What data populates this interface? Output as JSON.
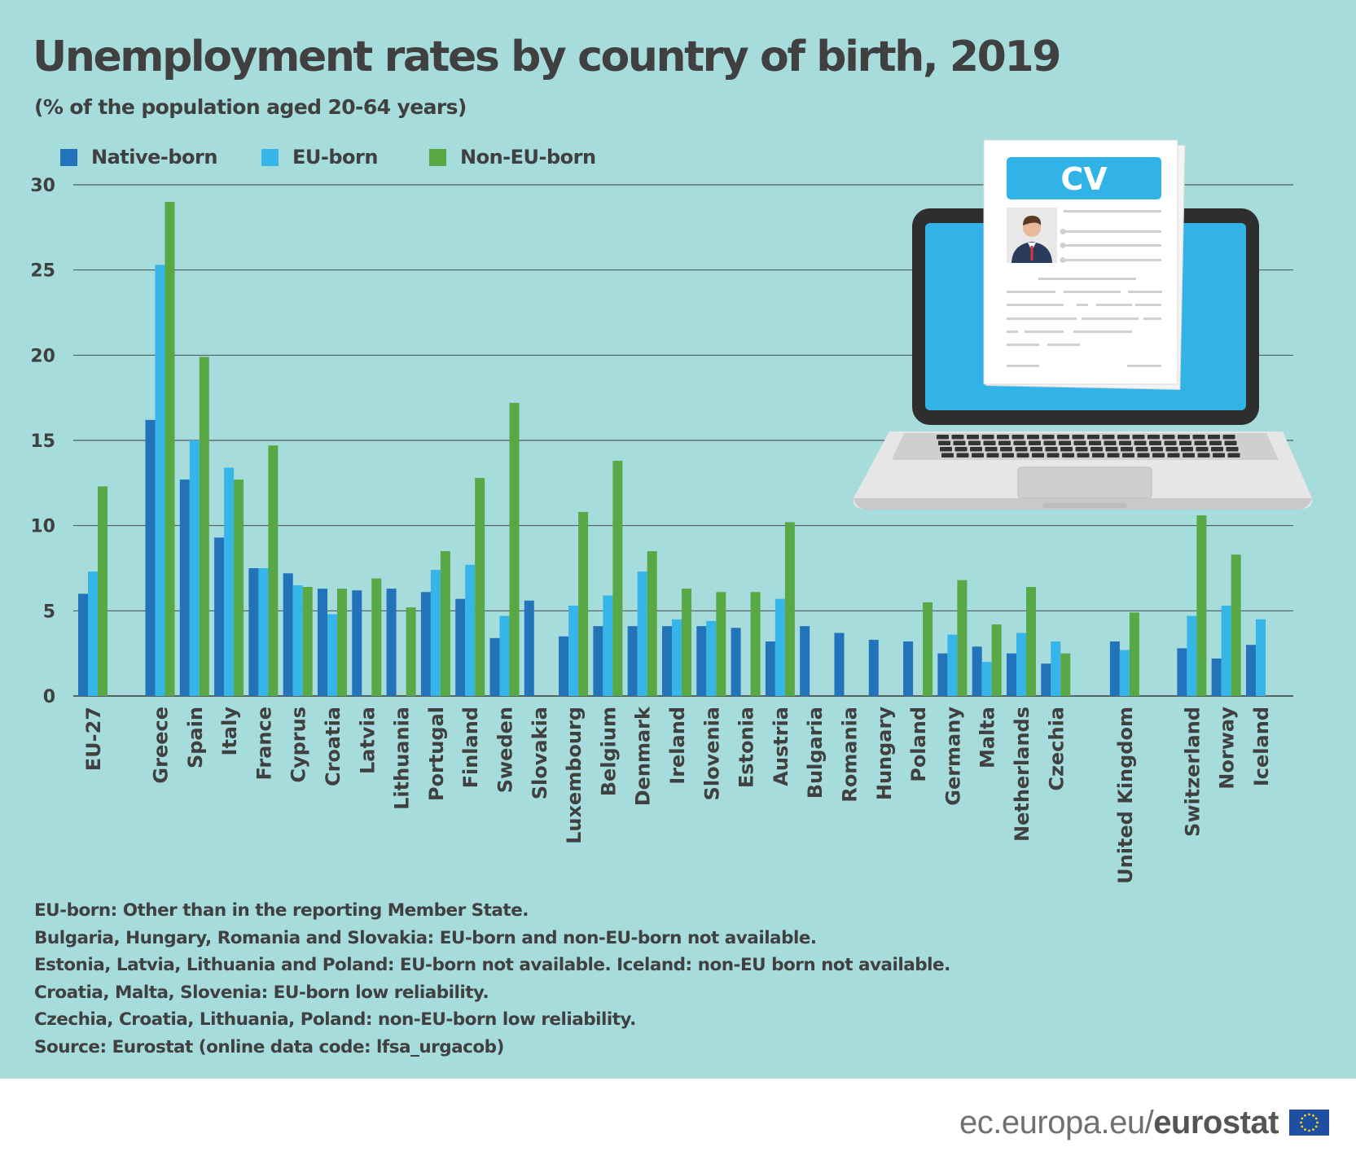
{
  "header": {
    "title": "Unemployment rates by country of birth, 2019",
    "subtitle": "(% of the population aged 20-64 years)"
  },
  "colors": {
    "background": "#a6dcdc",
    "native": "#2373bb",
    "eu": "#36b5e8",
    "noneu": "#58a945",
    "text": "#404040"
  },
  "illustration": {
    "cv_label": "CV",
    "icon": "laptop-with-cv-icon"
  },
  "chart_data": {
    "type": "bar",
    "ylim": [
      0,
      30
    ],
    "yticks": [
      "0",
      "5",
      "10",
      "15",
      "20",
      "25",
      "30"
    ],
    "grid": true,
    "legend_position": "top-left",
    "categories": [
      "EU-27",
      "Greece",
      "Spain",
      "Italy",
      "France",
      "Cyprus",
      "Croatia",
      "Latvia",
      "Lithuania",
      "Portugal",
      "Finland",
      "Sweden",
      "Slovakia",
      "Luxembourg",
      "Belgium",
      "Denmark",
      "Ireland",
      "Slovenia",
      "Estonia",
      "Austria",
      "Bulgaria",
      "Romania",
      "Hungary",
      "Poland",
      "Germany",
      "Malta",
      "Netherlands",
      "Czechia",
      "United Kingdom",
      "Switzerland",
      "Norway",
      "Iceland"
    ],
    "series": [
      {
        "name": "Native-born",
        "values": [
          6.0,
          16.2,
          12.7,
          9.3,
          7.5,
          7.2,
          6.3,
          6.2,
          6.3,
          6.1,
          5.7,
          3.4,
          5.6,
          3.5,
          4.1,
          4.1,
          4.1,
          4.1,
          4.0,
          3.2,
          4.1,
          3.7,
          3.3,
          3.2,
          2.5,
          2.9,
          2.5,
          1.9,
          3.2,
          2.8,
          2.2,
          3.0
        ]
      },
      {
        "name": "EU-born",
        "values": [
          7.3,
          25.3,
          15.0,
          13.4,
          7.5,
          6.5,
          4.8,
          null,
          null,
          7.4,
          7.7,
          4.7,
          null,
          5.3,
          5.9,
          7.3,
          4.5,
          4.4,
          null,
          5.7,
          null,
          null,
          null,
          null,
          3.6,
          2.0,
          3.7,
          3.2,
          2.7,
          4.7,
          5.3,
          4.5
        ]
      },
      {
        "name": "Non-EU-born",
        "values": [
          12.3,
          29.0,
          19.9,
          12.7,
          14.7,
          6.4,
          6.3,
          6.9,
          5.2,
          8.5,
          12.8,
          17.2,
          null,
          10.8,
          13.8,
          8.5,
          6.3,
          6.1,
          6.1,
          10.2,
          null,
          null,
          null,
          5.5,
          6.8,
          4.2,
          6.4,
          2.5,
          4.9,
          10.6,
          8.3,
          null
        ]
      }
    ]
  },
  "notes": [
    "EU-born: Other than in the reporting Member State.",
    "Bulgaria, Hungary, Romania and Slovakia: EU-born and non-EU-born not available.",
    "Estonia, Latvia, Lithuania and Poland: EU-born not available. Iceland: non-EU born not available.",
    "Croatia, Malta, Slovenia: EU-born low reliability.",
    "Czechia, Croatia, Lithuania, Poland: non-EU-born low reliability.",
    "Source: Eurostat (online data code: lfsa_urgacob)"
  ],
  "footer": {
    "url_prefix": "ec.europa.eu/",
    "url_brand": "eurostat"
  }
}
